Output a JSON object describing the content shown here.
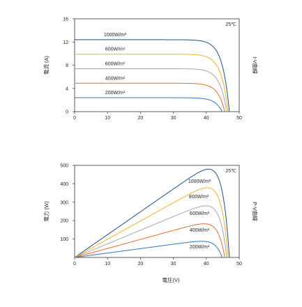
{
  "chart_data": [
    {
      "type": "line",
      "ylabel": "電流 (A)",
      "side_label": "I-V曲線",
      "temperature": "25℃",
      "xlim": [
        0,
        50
      ],
      "ylim": [
        0,
        16
      ],
      "xticks": [
        "0",
        "10",
        "20",
        "30",
        "40",
        "50"
      ],
      "yticks": [
        "0",
        "4",
        "8",
        "12",
        "16"
      ],
      "grid": false,
      "series": [
        {
          "name": "1000W/m²",
          "color": "#1f4e8c",
          "isc": 12.4,
          "voc": 47.0
        },
        {
          "name": "800W/m²",
          "color": "#f0b323",
          "isc": 9.9,
          "voc": 46.6
        },
        {
          "name": "600W/m²",
          "color": "#a6a6a6",
          "isc": 7.4,
          "voc": 46.2
        },
        {
          "name": "400W/m²",
          "color": "#e26d2a",
          "isc": 4.9,
          "voc": 45.6
        },
        {
          "name": "200W/m²",
          "color": "#2e75b6",
          "isc": 2.4,
          "voc": 44.8
        }
      ]
    },
    {
      "type": "line",
      "xlabel": "電圧(V)",
      "ylabel": "電力 (W)",
      "side_label": "P-V曲線",
      "temperature": "25℃",
      "xlim": [
        0,
        50
      ],
      "ylim": [
        0,
        500
      ],
      "xticks": [
        "0",
        "10",
        "20",
        "30",
        "40",
        "50"
      ],
      "yticks": [
        "100",
        "200",
        "300",
        "400",
        "500"
      ],
      "grid": false,
      "series": [
        {
          "name": "1000W/m²",
          "color": "#1f4e8c",
          "isc": 12.4,
          "voc": 47.0
        },
        {
          "name": "800W/m²",
          "color": "#f0b323",
          "isc": 9.9,
          "voc": 46.6
        },
        {
          "name": "600W/m²",
          "color": "#a6a6a6",
          "isc": 7.4,
          "voc": 46.2
        },
        {
          "name": "400W/m²",
          "color": "#e26d2a",
          "isc": 4.9,
          "voc": 45.6
        },
        {
          "name": "200W/m²",
          "color": "#2e75b6",
          "isc": 2.4,
          "voc": 44.8
        }
      ]
    }
  ]
}
